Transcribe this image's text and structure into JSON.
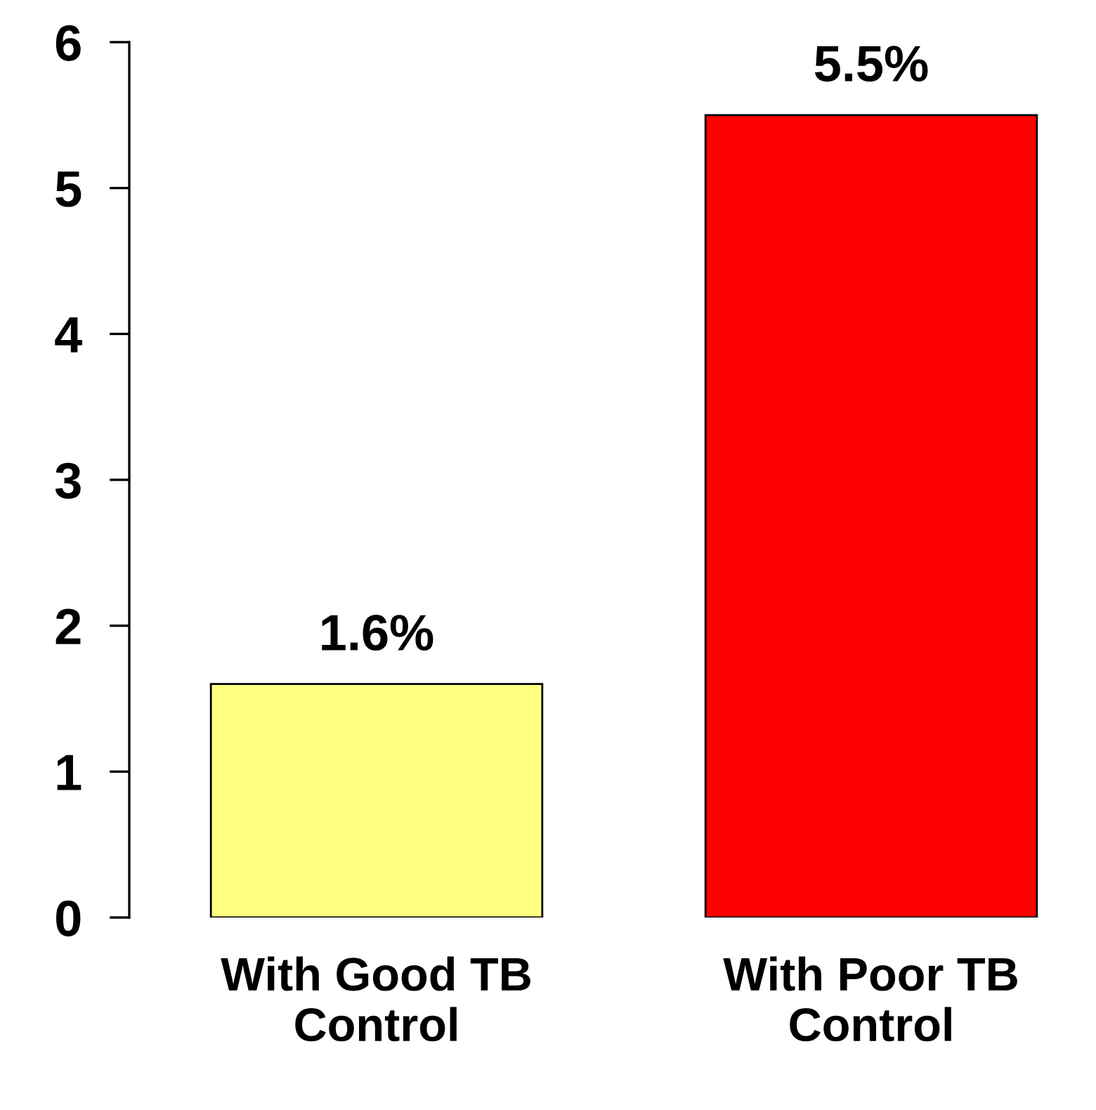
{
  "chart_data": {
    "type": "bar",
    "categories": [
      "With Good TB\nControl",
      "With Poor TB\nControl"
    ],
    "values": [
      1.6,
      5.5
    ],
    "colors": [
      "#ffff80",
      "#ff0000"
    ],
    "value_labels": [
      "1.6%",
      "5.5%"
    ],
    "ylim": [
      0,
      6
    ],
    "yticks": [
      0,
      1,
      2,
      3,
      4,
      5,
      6
    ],
    "grid": false,
    "legend": false
  }
}
